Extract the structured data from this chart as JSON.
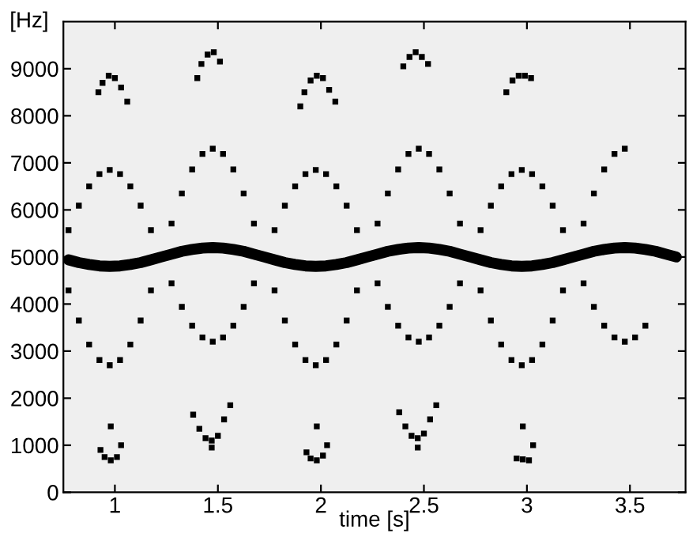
{
  "chart_data": {
    "type": "scatter",
    "xlabel": "time [s]",
    "ylabel": "[Hz]",
    "xlim": [
      0.75,
      3.77
    ],
    "ylim": [
      0,
      10000
    ],
    "xticks": [
      1,
      1.5,
      2,
      2.5,
      3,
      3.5
    ],
    "yticks": [
      0,
      1000,
      2000,
      3000,
      4000,
      5000,
      6000,
      7000,
      8000,
      9000
    ],
    "grid": false,
    "legend": false,
    "marker": "square",
    "series": [
      {
        "color": "#000000",
        "x": [
          0.775,
          0.825,
          0.875,
          0.925,
          0.975,
          1.025,
          1.075,
          1.125,
          1.175,
          1.225,
          1.275,
          1.325,
          1.375,
          1.425,
          1.475,
          1.525,
          1.575,
          1.625,
          1.675,
          1.725,
          1.775,
          1.825,
          1.875,
          1.925,
          1.975,
          2.025,
          2.075,
          2.125,
          2.175,
          2.225,
          2.275,
          2.325,
          2.375,
          2.425,
          2.475,
          2.525,
          2.575,
          2.625,
          2.675,
          2.725,
          2.775,
          2.825,
          2.875,
          2.925,
          2.975,
          3.025,
          3.075,
          3.125,
          3.175,
          3.225,
          3.275,
          3.325,
          3.375,
          3.425,
          3.475,
          3.525,
          3.575
        ],
        "values": [
          5570,
          6090,
          6500,
          6760,
          6850,
          6760,
          6500,
          6090,
          5570,
          null,
          4440,
          3940,
          3540,
          3290,
          3200,
          3290,
          3540,
          3940,
          4440,
          null,
          5570,
          6090,
          6500,
          6760,
          6850,
          6760,
          6500,
          6090,
          5570,
          null,
          4440,
          3940,
          3540,
          3290,
          3200,
          3290,
          3540,
          3940,
          4440,
          null,
          5570,
          6090,
          6500,
          6760,
          6850,
          6760,
          6500,
          6090,
          5570,
          null,
          4440,
          3940,
          3540,
          3290,
          3200,
          3290,
          3540
        ]
      },
      {
        "color": "#000000",
        "x": [
          0.775,
          0.825,
          0.875,
          0.925,
          0.975,
          1.025,
          1.075,
          1.125,
          1.175,
          1.225,
          1.275,
          1.325,
          1.375,
          1.425,
          1.475,
          1.525,
          1.575,
          1.625,
          1.675,
          1.725,
          1.775,
          1.825,
          1.875,
          1.925,
          1.975,
          2.025,
          2.075,
          2.125,
          2.175,
          2.225,
          2.275,
          2.325,
          2.375,
          2.425,
          2.475,
          2.525,
          2.575,
          2.625,
          2.675,
          2.725,
          2.775,
          2.825,
          2.875,
          2.925,
          2.975,
          3.025,
          3.075,
          3.125,
          3.175,
          3.225,
          3.275,
          3.325,
          3.375,
          3.425,
          3.475
        ],
        "values": [
          4290,
          3650,
          3140,
          2810,
          2700,
          2810,
          3140,
          3650,
          4290,
          null,
          5710,
          6350,
          6860,
          7190,
          7300,
          7190,
          6860,
          6350,
          5710,
          null,
          4290,
          3650,
          3140,
          2810,
          2700,
          2810,
          3140,
          3650,
          4290,
          null,
          5710,
          6350,
          6860,
          7190,
          7300,
          7190,
          6860,
          6350,
          5710,
          null,
          4290,
          3650,
          3140,
          2810,
          2700,
          2810,
          3140,
          3650,
          4290,
          null,
          5710,
          6350,
          6860,
          7190,
          7300
        ]
      },
      {
        "type": "line",
        "marker": "none",
        "color": "#000000",
        "x": [
          0.775,
          0.825,
          0.875,
          0.925,
          0.975,
          1.025,
          1.075,
          1.125,
          1.175,
          1.225,
          1.275,
          1.325,
          1.375,
          1.425,
          1.475,
          1.525,
          1.575,
          1.625,
          1.675,
          1.725,
          1.775,
          1.825,
          1.875,
          1.925,
          1.975,
          2.025,
          2.075,
          2.125,
          2.175,
          2.225,
          2.275,
          2.325,
          2.375,
          2.425,
          2.475,
          2.525,
          2.575,
          2.625,
          2.675,
          2.725,
          2.775,
          2.825,
          2.875,
          2.925,
          2.975,
          3.025,
          3.075,
          3.125,
          3.175,
          3.225,
          3.275,
          3.325,
          3.375,
          3.425,
          3.475,
          3.525,
          3.575,
          3.625,
          3.675,
          3.725
        ],
        "values": [
          4940,
          4880,
          4840,
          4810,
          4800,
          4810,
          4840,
          4880,
          4940,
          5000,
          5060,
          5120,
          5160,
          5190,
          5200,
          5190,
          5160,
          5120,
          5060,
          5000,
          4940,
          4880,
          4840,
          4810,
          4800,
          4810,
          4840,
          4880,
          4940,
          5000,
          5060,
          5120,
          5160,
          5190,
          5200,
          5190,
          5160,
          5120,
          5060,
          5000,
          4940,
          4880,
          4840,
          4810,
          4800,
          4810,
          4840,
          4880,
          4940,
          5000,
          5060,
          5120,
          5160,
          5190,
          5200,
          5190,
          5160,
          5120,
          5060,
          5000
        ]
      },
      {
        "color": "#000000",
        "x": [
          0.92,
          0.94,
          0.97,
          1.0,
          1.03,
          1.06,
          1.4,
          1.42,
          1.45,
          1.48,
          1.51,
          1.9,
          1.92,
          1.95,
          1.98,
          2.01,
          2.04,
          2.07,
          2.4,
          2.43,
          2.46,
          2.49,
          2.52,
          2.9,
          2.93,
          2.96,
          2.99,
          3.02
        ],
        "values": [
          8500,
          8700,
          8850,
          8800,
          8600,
          8300,
          8800,
          9100,
          9300,
          9350,
          9150,
          8200,
          8500,
          8750,
          8850,
          8800,
          8550,
          8300,
          9050,
          9250,
          9350,
          9250,
          9100,
          8500,
          8750,
          8850,
          8850,
          8800
        ]
      },
      {
        "color": "#000000",
        "x": [
          0.93,
          0.95,
          0.98,
          1.01,
          1.03,
          0.98,
          1.38,
          1.41,
          1.44,
          1.47,
          1.5,
          1.53,
          1.56,
          1.47,
          1.93,
          1.95,
          1.98,
          2.01,
          2.03,
          1.98,
          2.38,
          2.41,
          2.44,
          2.47,
          2.5,
          2.53,
          2.56,
          2.47,
          2.95,
          2.98,
          3.01,
          2.98,
          3.03
        ],
        "values": [
          900,
          750,
          680,
          750,
          1000,
          1400,
          1650,
          1350,
          1150,
          1100,
          1200,
          1550,
          1850,
          950,
          850,
          720,
          680,
          780,
          1000,
          1400,
          1700,
          1400,
          1200,
          1150,
          1250,
          1550,
          1850,
          950,
          720,
          700,
          680,
          1400,
          1000
        ]
      }
    ]
  }
}
